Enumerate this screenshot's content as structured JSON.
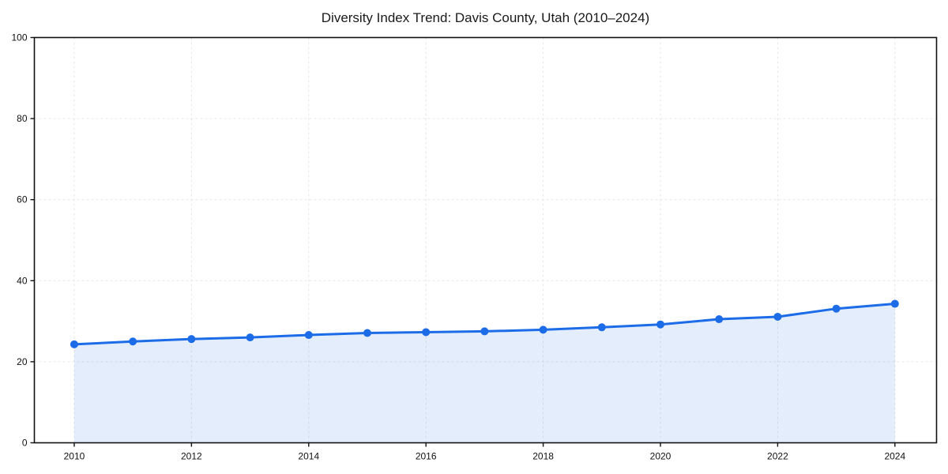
{
  "title": "Diversity Index Trend: Davis County, Utah (2010–2024)",
  "chart_data": {
    "type": "line",
    "title": "Diversity Index Trend: Davis County, Utah (2010–2024)",
    "x": [
      2010,
      2011,
      2012,
      2013,
      2014,
      2015,
      2016,
      2017,
      2018,
      2019,
      2020,
      2021,
      2022,
      2023,
      2024
    ],
    "values": [
      24.3,
      25.0,
      25.6,
      26.0,
      26.6,
      27.1,
      27.3,
      27.5,
      27.9,
      28.5,
      29.2,
      30.5,
      31.1,
      33.1,
      34.3
    ],
    "xlabel": "",
    "ylabel": "",
    "xlim": [
      2009.32,
      2024.71
    ],
    "ylim": [
      0,
      100
    ],
    "xticks": [
      2010,
      2012,
      2014,
      2016,
      2018,
      2020,
      2022,
      2024
    ],
    "yticks": [
      0,
      20,
      40,
      60,
      80,
      100
    ],
    "grid": true,
    "grid_style": "dashed",
    "legend": false,
    "line_color": "#1c6ce8",
    "fill_color": "rgba(28,108,232,0.12)",
    "grid_color": "#e6e6e6",
    "axis_color": "#111111",
    "marker": "circle"
  }
}
